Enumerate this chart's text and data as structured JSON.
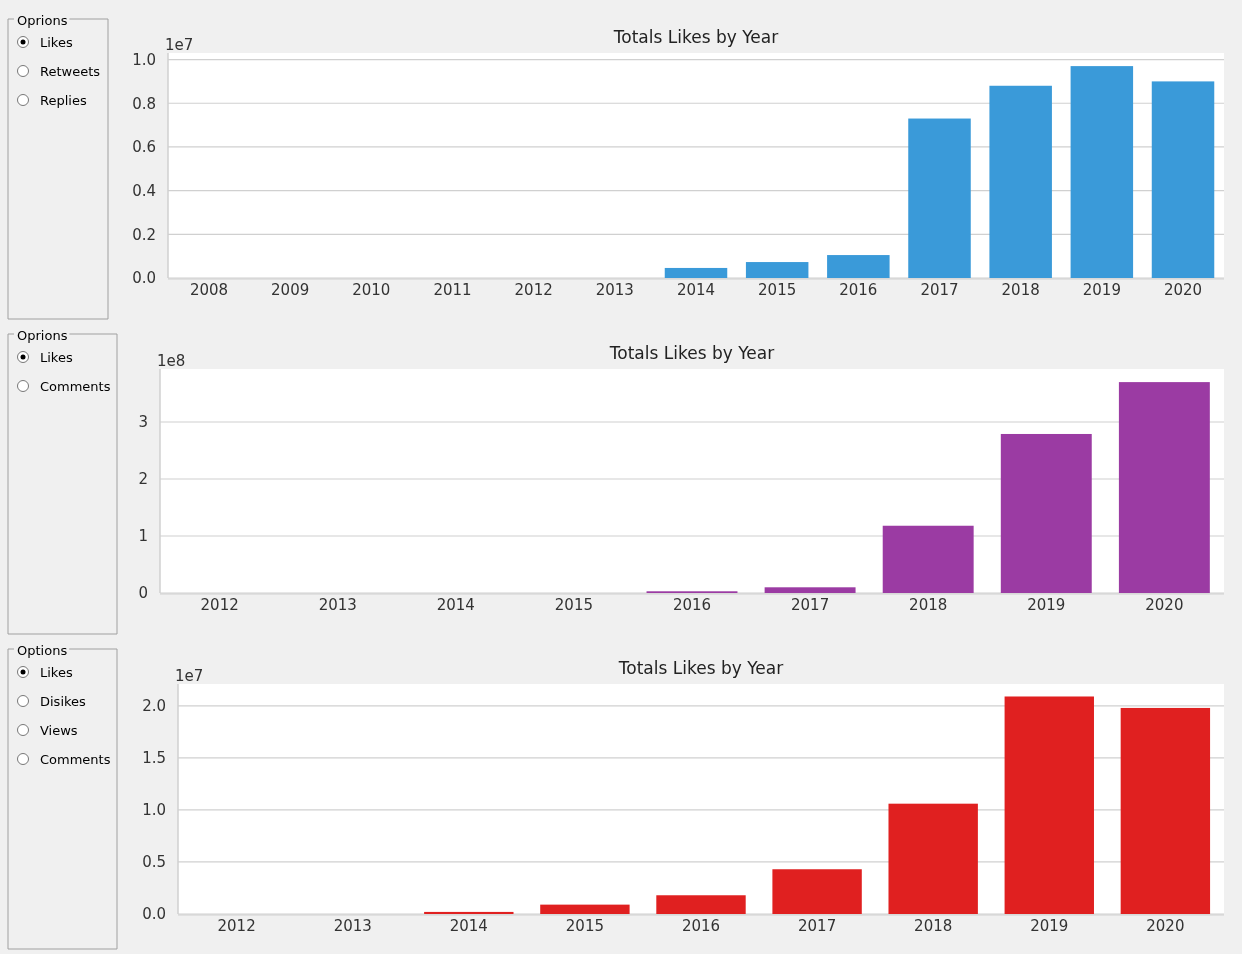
{
  "chart_data": [
    {
      "type": "bar",
      "title": "Totals Likes by Year",
      "ylabel": "1e7",
      "categories": [
        "2008",
        "2009",
        "2010",
        "2011",
        "2012",
        "2013",
        "2014",
        "2015",
        "2016",
        "2017",
        "2018",
        "2019",
        "2020"
      ],
      "values": [
        0,
        0,
        0,
        0,
        0,
        0,
        0.046,
        0.073,
        0.105,
        0.73,
        0.88,
        0.97,
        0.9
      ],
      "color": "#3a9ad9",
      "ylim": [
        0,
        1.03
      ],
      "yticks": [
        {
          "value": 0,
          "label": "0.0"
        },
        0.2,
        0.4,
        0.6,
        0.8,
        {
          "value": 1,
          "label": "1.0"
        }
      ],
      "grid": "y",
      "annotations": [
        "Oprions",
        "Likes",
        "Retweets",
        "Replies"
      ]
    },
    {
      "type": "bar",
      "title": "Totals Likes by Year",
      "ylabel": "1e8",
      "categories": [
        "2012",
        "2013",
        "2014",
        "2015",
        "2016",
        "2017",
        "2018",
        "2019",
        "2020"
      ],
      "values": [
        0,
        0,
        0,
        0,
        0.03,
        0.1,
        1.18,
        2.79,
        3.7
      ],
      "color": "#9b3ba3",
      "ylim": [
        0,
        3.93
      ],
      "yticks": [
        0,
        1,
        2,
        3
      ],
      "grid": "y",
      "annotations": [
        "Oprions",
        "Likes",
        "Comments"
      ]
    },
    {
      "type": "bar",
      "title": "Totals Likes by Year",
      "ylabel": "1e7",
      "categories": [
        "2012",
        "2013",
        "2014",
        "2015",
        "2016",
        "2017",
        "2018",
        "2019",
        "2020"
      ],
      "values": [
        0,
        0,
        0.02,
        0.09,
        0.18,
        0.43,
        1.06,
        2.09,
        1.98
      ],
      "color": "#e02020",
      "ylim": [
        0,
        2.21
      ],
      "yticks": [
        {
          "value": 0,
          "label": "0.0"
        },
        0.5,
        {
          "value": 1,
          "label": "1.0"
        },
        1.5,
        {
          "value": 2,
          "label": "2.0"
        }
      ],
      "grid": "y",
      "annotations": [
        "Options",
        "Likes",
        "Disikes",
        "Views",
        "Comments"
      ]
    }
  ]
}
